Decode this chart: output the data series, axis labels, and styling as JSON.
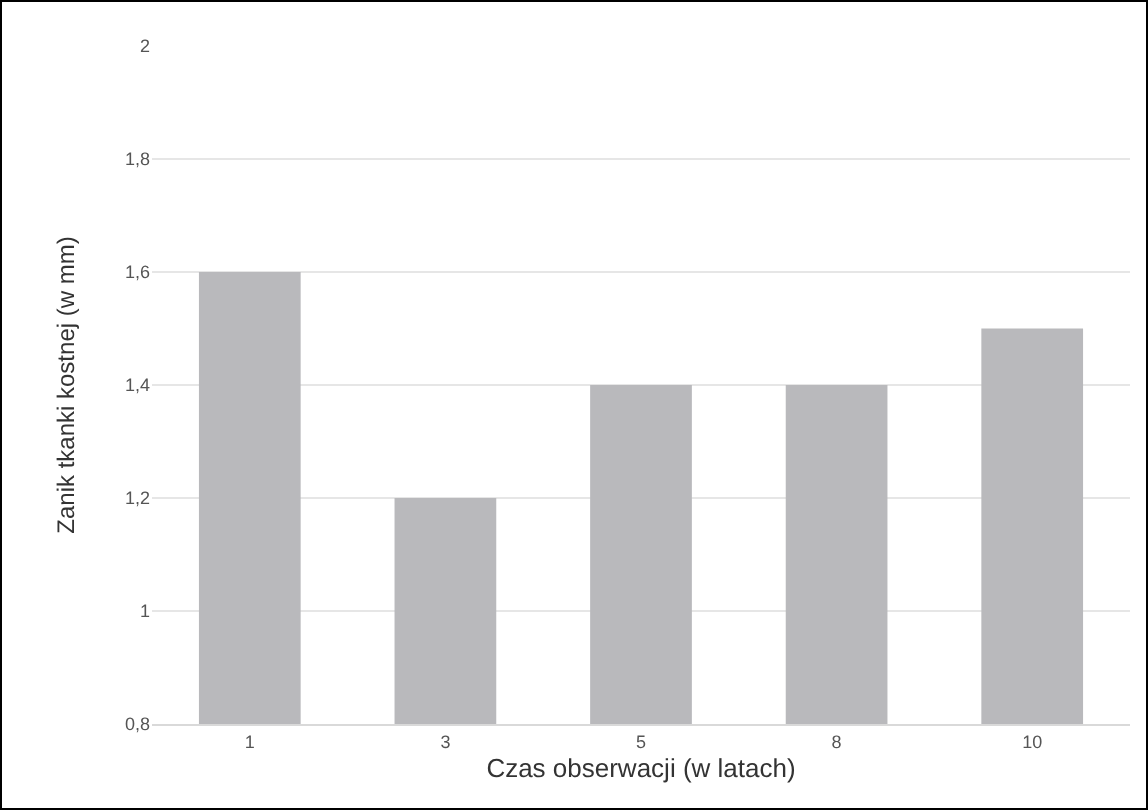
{
  "chart_data": {
    "type": "bar",
    "xlabel": "Czas obserwacji (w latach)",
    "ylabel": "Zanik tkanki kostnej (w mm)",
    "categories": [
      "1",
      "3",
      "5",
      "8",
      "10"
    ],
    "values": [
      1.6,
      1.2,
      1.4,
      1.4,
      1.5
    ],
    "color": "#b9b9bc",
    "ylim": [
      0.8,
      2
    ],
    "yticks": [
      {
        "value": 0.8,
        "label": "0,8"
      },
      1,
      {
        "value": 1.2,
        "label": "1,2"
      },
      {
        "value": 1.4,
        "label": "1,4"
      },
      {
        "value": 1.6,
        "label": "1,6"
      },
      {
        "value": 1.8,
        "label": "1,8"
      },
      2
    ],
    "grid": "y"
  }
}
